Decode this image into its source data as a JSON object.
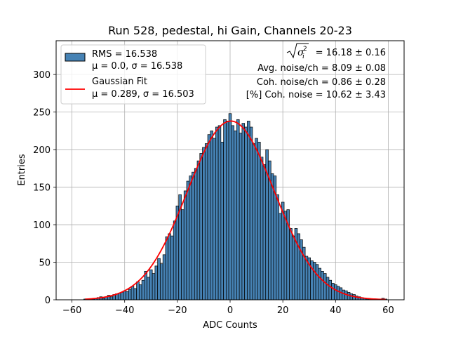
{
  "chart_data": {
    "type": "bar",
    "title": "Run 528, pedestal, hi Gain, Channels 20-23",
    "xlabel": "ADC Counts",
    "ylabel": "Entries",
    "xlim": [
      -66,
      66
    ],
    "ylim": [
      0,
      345
    ],
    "xticks": [
      -60,
      -40,
      -20,
      0,
      20,
      40,
      60
    ],
    "yticks": [
      0,
      50,
      100,
      150,
      200,
      250,
      300
    ],
    "grid": true,
    "bin_width": 1,
    "bar_color": "#4682b4",
    "fit_color": "#ff0000",
    "bins_x": [
      -55,
      -54,
      -53,
      -52,
      -51,
      -50,
      -49,
      -48,
      -47,
      -46,
      -45,
      -44,
      -43,
      -42,
      -41,
      -40,
      -39,
      -38,
      -37,
      -36,
      -35,
      -34,
      -33,
      -32,
      -31,
      -30,
      -29,
      -28,
      -27,
      -26,
      -25,
      -24,
      -23,
      -22,
      -21,
      -20,
      -19,
      -18,
      -17,
      -16,
      -15,
      -14,
      -13,
      -12,
      -11,
      -10,
      -9,
      -8,
      -7,
      -6,
      -5,
      -4,
      -3,
      -2,
      -1,
      0,
      1,
      2,
      3,
      4,
      5,
      6,
      7,
      8,
      9,
      10,
      11,
      12,
      13,
      14,
      15,
      16,
      17,
      18,
      19,
      20,
      21,
      22,
      23,
      24,
      25,
      26,
      27,
      28,
      29,
      30,
      31,
      32,
      33,
      34,
      35,
      36,
      37,
      38,
      39,
      40,
      41,
      42,
      43,
      44,
      45,
      46,
      47,
      48,
      49,
      50,
      51,
      52,
      53,
      54,
      55,
      56,
      57,
      58,
      59
    ],
    "bins_y": [
      1,
      1,
      0,
      1,
      2,
      3,
      4,
      2,
      4,
      6,
      4,
      7,
      8,
      9,
      10,
      12,
      11,
      14,
      18,
      15,
      24,
      20,
      26,
      38,
      30,
      40,
      35,
      45,
      55,
      48,
      60,
      84,
      88,
      85,
      105,
      125,
      140,
      120,
      145,
      158,
      165,
      170,
      175,
      185,
      195,
      203,
      208,
      220,
      225,
      215,
      230,
      232,
      210,
      240,
      238,
      248,
      232,
      225,
      240,
      222,
      235,
      230,
      238,
      230,
      208,
      215,
      210,
      190,
      180,
      200,
      185,
      168,
      165,
      140,
      115,
      130,
      118,
      120,
      95,
      85,
      95,
      88,
      80,
      70,
      58,
      56,
      52,
      50,
      47,
      42,
      38,
      35,
      30,
      26,
      22,
      20,
      18,
      16,
      13,
      12,
      10,
      8,
      7,
      5,
      4,
      3,
      2,
      1,
      1,
      0,
      0,
      0,
      0,
      2,
      1
    ],
    "fit": {
      "amplitude": 238,
      "mean": 0.289,
      "sigma": 16.503,
      "x_range": [
        -55,
        59
      ]
    },
    "legend": {
      "placement": "upper-left",
      "entries": [
        {
          "kind": "patch",
          "line1": "RMS = 16.538",
          "line2": "μ = 0.0, σ = 16.538"
        },
        {
          "kind": "line",
          "line1": "Gaussian Fit",
          "line2": "μ = 0.289, σ = 16.503"
        }
      ]
    },
    "annotations": {
      "placement": "upper-right",
      "lines": [
        " = 16.18 ± 0.16",
        "Avg. noise/ch = 8.09 ± 0.08",
        "Coh. noise/ch = 0.86 ± 0.28",
        "[%] Coh. noise = 10.62 ± 3.43"
      ]
    }
  }
}
